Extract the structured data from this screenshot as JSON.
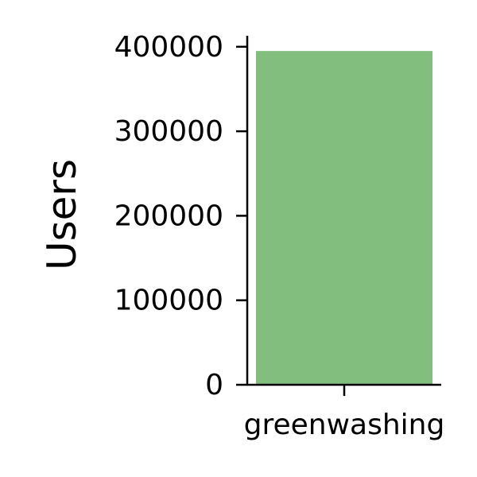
{
  "chart_data": {
    "type": "bar",
    "categories": [
      "greenwashing"
    ],
    "values": [
      395000
    ],
    "title": "",
    "xlabel": "",
    "ylabel": "Users",
    "ylim": [
      0,
      413000
    ],
    "yticks": [
      0,
      100000,
      200000,
      300000,
      400000
    ],
    "ytick_labels": [
      "0",
      "100000",
      "200000",
      "300000",
      "400000"
    ],
    "grid": false,
    "bar_color": "#82bf7e",
    "axis_color": "#000000"
  }
}
